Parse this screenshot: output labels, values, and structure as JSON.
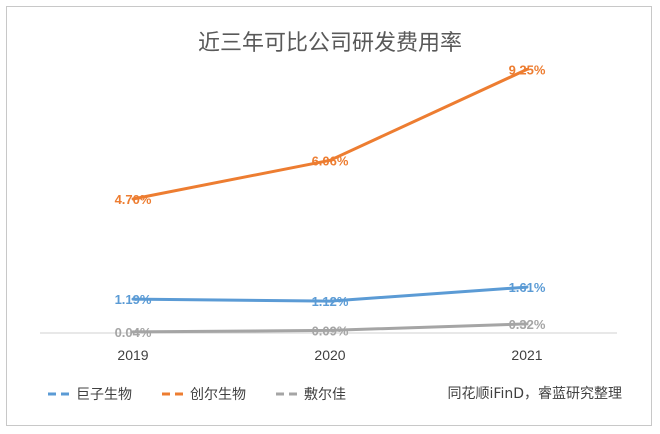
{
  "chart_data": {
    "type": "line",
    "title": "近三年可比公司研发费用率",
    "categories": [
      "2019",
      "2020",
      "2021"
    ],
    "series": [
      {
        "name": "巨子生物",
        "color": "#5b9bd5",
        "values": [
          1.19,
          1.12,
          1.61
        ],
        "labels": [
          "1.19%",
          "1.12%",
          "1.61%"
        ]
      },
      {
        "name": "创尔生物",
        "color": "#ed7d31",
        "values": [
          4.7,
          6.06,
          9.25
        ],
        "labels": [
          "4.70%",
          "6.06%",
          "9.25%"
        ]
      },
      {
        "name": "敷尔佳",
        "color": "#a5a5a5",
        "values": [
          0.04,
          0.09,
          0.32
        ],
        "labels": [
          "0.04%",
          "0.09%",
          "0.32%"
        ]
      }
    ],
    "ylim": [
      0,
      10
    ],
    "grid": false,
    "legend_position": "bottom-left",
    "source": "同花顺iFinD，睿蓝研究整理"
  }
}
